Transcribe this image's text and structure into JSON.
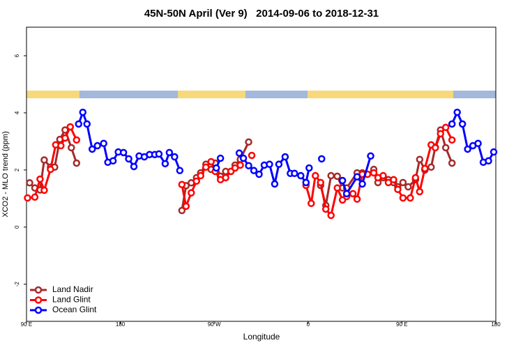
{
  "chart_data": {
    "type": "line",
    "title": "45N-50N April (Ver 9)   2014-09-06 to 2018-12-31",
    "x_label": "Longitude",
    "y_label": "XCO2 - MLO trend (ppm)",
    "xlim": [
      90,
      540
    ],
    "ylim": [
      -3.3,
      7
    ],
    "xticks": [
      {
        "value": 90,
        "label": "90 E"
      },
      180,
      {
        "value": 270,
        "label": "90 W"
      },
      {
        "value": 360,
        "label": "0"
      },
      {
        "value": 450,
        "label": "90 E"
      },
      {
        "value": 540,
        "label": "180"
      }
    ],
    "yticks": [
      -2,
      0,
      2,
      4,
      6
    ],
    "legend": "bottom-left",
    "series": [
      {
        "name": "Land Nadir",
        "color": "#a52a2a",
        "x": [
          93,
          98,
          103,
          107,
          113,
          117,
          122,
          127,
          133,
          138,
          null,
          239,
          243,
          248,
          253,
          257,
          262,
          267,
          271,
          276,
          281,
          286,
          290,
          295,
          303,
          null,
          372,
          377,
          382,
          388,
          393,
          397,
          407,
          412,
          417,
          423,
          427,
          432,
          437,
          442,
          446,
          451,
          456,
          463,
          467,
          472,
          478,
          482,
          487,
          492,
          498
        ],
        "values": [
          1.55,
          1.37,
          1.3,
          2.35,
          2.1,
          2.1,
          3.07,
          3.4,
          2.78,
          2.24,
          null,
          0.58,
          1.45,
          1.55,
          1.73,
          1.9,
          2.2,
          2.02,
          2.24,
          1.78,
          1.95,
          1.95,
          2.17,
          2.37,
          2.98,
          null,
          1.46,
          0.76,
          1.8,
          1.78,
          1.37,
          1.37,
          1.9,
          1.9,
          1.85,
          2.02,
          1.56,
          1.73,
          1.66,
          1.56,
          1.41,
          1.56,
          1.41,
          1.66,
          2.37,
          2.0,
          2.1,
          2.8,
          3.4,
          2.78,
          2.24
        ]
      },
      {
        "name": "Land Glint",
        "color": "#ff0000",
        "x": [
          91,
          98,
          103,
          107,
          113,
          118,
          123,
          127,
          132,
          138,
          null,
          239,
          243,
          248,
          253,
          257,
          262,
          267,
          271,
          276,
          281,
          286,
          290,
          295,
          null,
          306,
          null,
          358,
          363,
          367,
          372,
          377,
          382,
          388,
          393,
          397,
          403,
          407,
          412,
          417,
          423,
          427,
          432,
          437,
          442,
          446,
          451,
          458,
          463,
          467,
          472,
          478,
          482,
          487,
          492,
          498
        ],
        "values": [
          1.02,
          1.05,
          1.68,
          1.29,
          2.02,
          2.88,
          2.85,
          3.12,
          3.51,
          3.05,
          null,
          1.49,
          0.73,
          1.2,
          1.61,
          1.8,
          2.1,
          2.29,
          1.95,
          1.66,
          1.73,
          1.95,
          2.07,
          2.17,
          null,
          2.51,
          null,
          1.46,
          0.83,
          1.8,
          1.56,
          0.63,
          0.41,
          1.37,
          0.95,
          1.07,
          1.17,
          0.98,
          1.85,
          1.85,
          1.9,
          1.73,
          1.8,
          1.56,
          1.66,
          1.32,
          1.02,
          1.02,
          1.73,
          1.24,
          2.05,
          2.88,
          2.78,
          3.27,
          3.49,
          3.05
        ]
      },
      {
        "name": "Ocean Glint",
        "color": "#0000ff",
        "x": [
          140,
          144,
          148,
          153,
          158,
          164,
          168,
          173,
          178,
          183,
          188,
          193,
          198,
          203,
          208,
          213,
          217,
          223,
          227,
          232,
          237,
          null,
          272,
          276,
          null,
          294,
          298,
          303,
          308,
          313,
          318,
          323,
          328,
          332,
          338,
          343,
          347,
          353,
          358,
          361,
          null,
          373,
          null,
          393,
          397,
          407,
          412,
          420,
          null,
          498,
          503,
          508,
          513,
          518,
          523,
          528,
          533,
          538
        ],
        "values": [
          3.61,
          4.02,
          3.61,
          2.73,
          2.85,
          2.93,
          2.27,
          2.32,
          2.63,
          2.61,
          2.39,
          2.12,
          2.49,
          2.46,
          2.54,
          2.54,
          2.56,
          2.22,
          2.61,
          2.46,
          1.98,
          null,
          2.07,
          2.41,
          null,
          2.59,
          2.41,
          2.15,
          1.98,
          1.85,
          2.17,
          2.2,
          1.51,
          2.2,
          2.46,
          1.88,
          1.88,
          1.8,
          1.56,
          2.07,
          null,
          2.39,
          null,
          1.63,
          1.17,
          1.76,
          1.51,
          2.49,
          null,
          3.61,
          4.02,
          3.61,
          2.73,
          2.85,
          2.93,
          2.27,
          2.32,
          2.63
        ]
      }
    ]
  }
}
